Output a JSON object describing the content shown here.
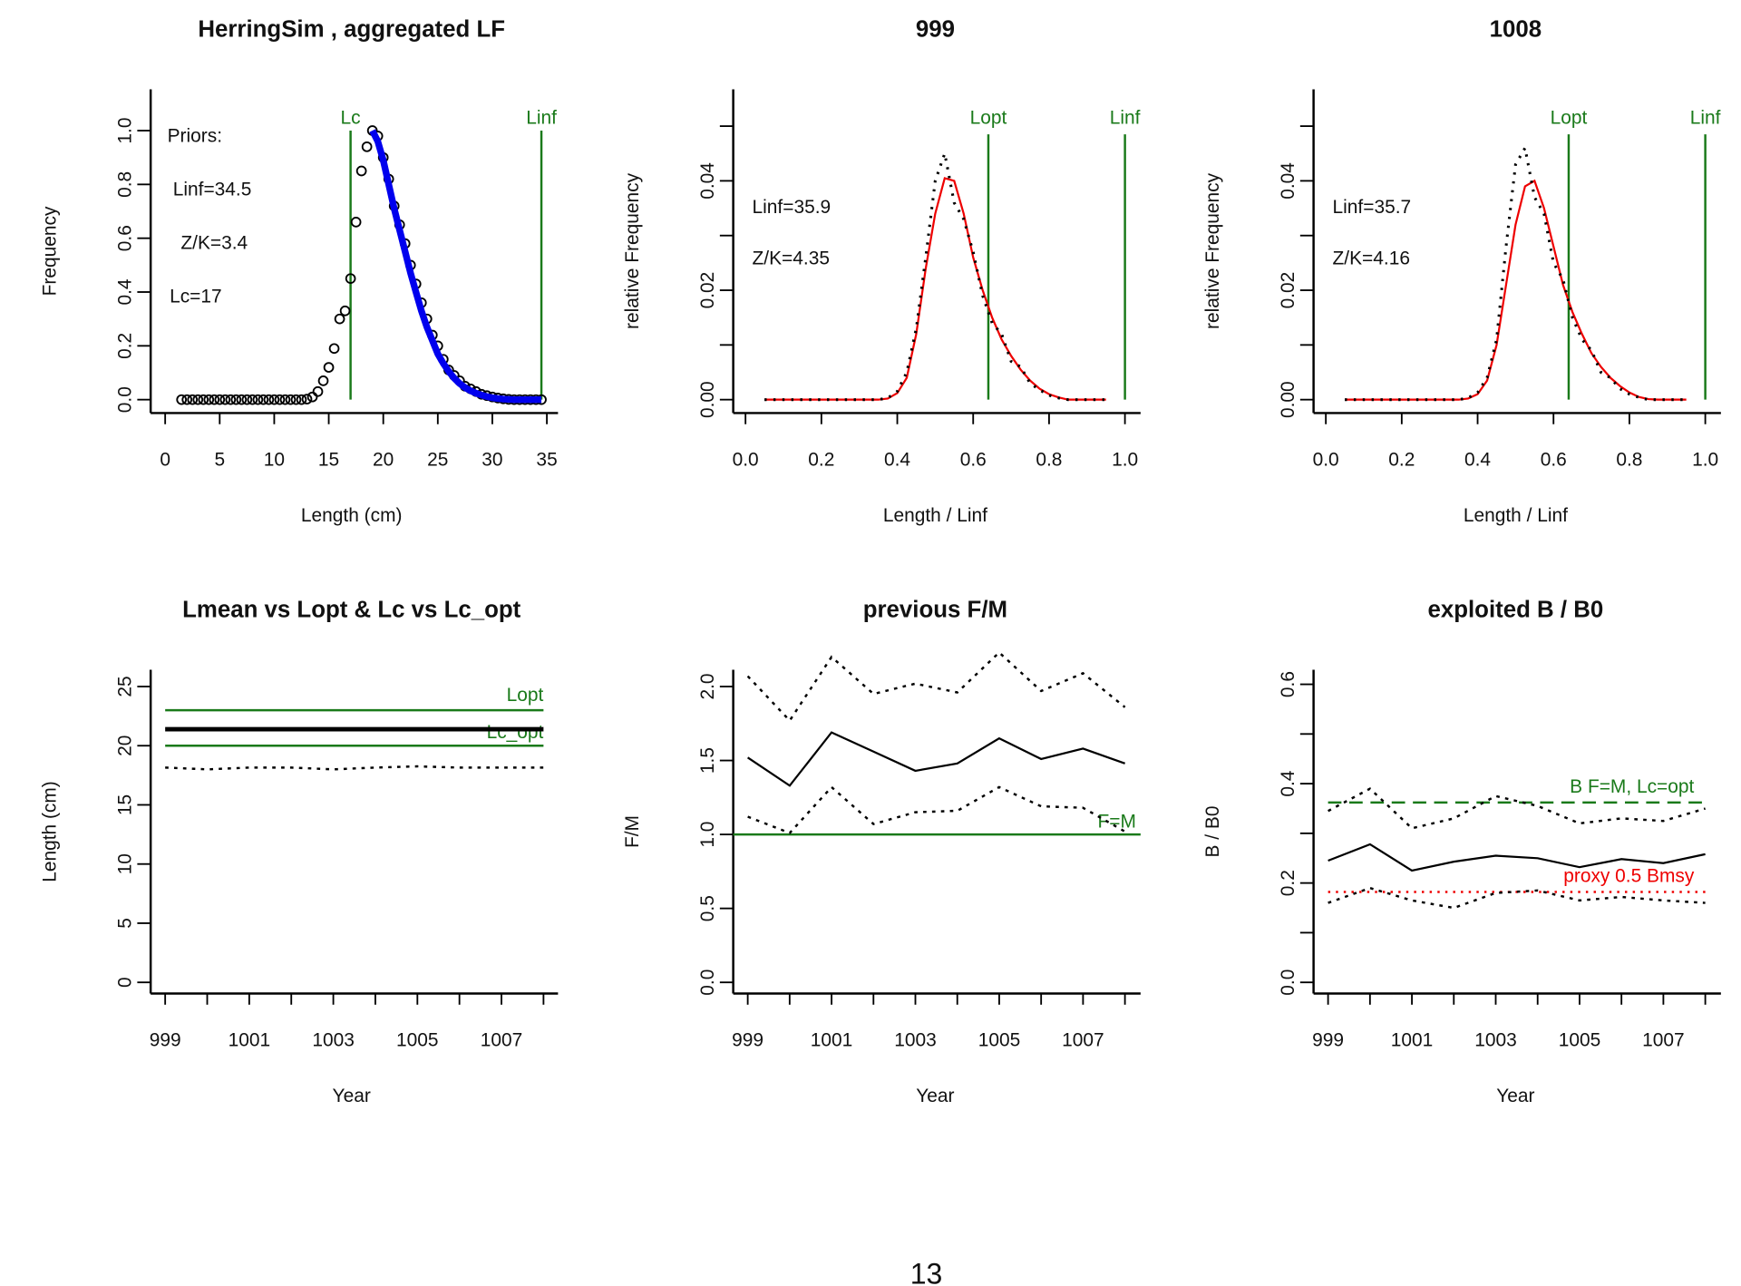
{
  "page_number": "13",
  "colors": {
    "green": "#1a7a1a",
    "blue": "#0000ee",
    "red": "#ee0000",
    "black": "#000000"
  },
  "chart_data": [
    {
      "type": "scatter",
      "title": "HerringSim , aggregated LF",
      "xlabel": "Length (cm)",
      "ylabel": "Frequency",
      "xlim": [
        0,
        35
      ],
      "ylim": [
        0,
        1.1
      ],
      "xticks": [
        0,
        5,
        10,
        15,
        20,
        25,
        30,
        35
      ],
      "yticks": [
        0,
        0.2,
        0.4,
        0.6,
        0.8,
        1.0
      ],
      "ytick_labels": [
        "0.0",
        "0.2",
        "0.4",
        "0.6",
        "0.8",
        "1.0"
      ],
      "annotations": [
        "Priors:",
        "Linf=34.5",
        "Z/K=3.4",
        "Lc=17"
      ],
      "vlines": [
        {
          "label": "Lc",
          "x": 17,
          "color": "green"
        },
        {
          "label": "Linf",
          "x": 34.5,
          "color": "green"
        }
      ],
      "observed": {
        "x": [
          1.5,
          2,
          2.5,
          3,
          3.5,
          4,
          4.5,
          5,
          5.5,
          6,
          6.5,
          7,
          7.5,
          8,
          8.5,
          9,
          9.5,
          10,
          10.5,
          11,
          11.5,
          12,
          12.5,
          13,
          13.5,
          14,
          14.5,
          15,
          15.5,
          16,
          16.5,
          17,
          17.5,
          18,
          18.5,
          19,
          19.5,
          20,
          20.5,
          21,
          21.5,
          22,
          22.5,
          23,
          23.5,
          24,
          24.5,
          25,
          25.5,
          26,
          26.5,
          27,
          27.5,
          28,
          28.5,
          29,
          29.5,
          30,
          30.5,
          31,
          31.5,
          32,
          32.5,
          33,
          33.5,
          34,
          34.5
        ],
        "y": [
          0,
          0,
          0,
          0,
          0,
          0,
          0,
          0,
          0,
          0,
          0,
          0,
          0,
          0,
          0,
          0,
          0,
          0,
          0,
          0,
          0,
          0,
          0,
          0.002,
          0.01,
          0.03,
          0.07,
          0.12,
          0.19,
          0.3,
          0.33,
          0.45,
          0.66,
          0.85,
          0.94,
          1.0,
          0.98,
          0.9,
          0.82,
          0.72,
          0.65,
          0.58,
          0.5,
          0.43,
          0.36,
          0.3,
          0.24,
          0.2,
          0.15,
          0.11,
          0.09,
          0.07,
          0.05,
          0.04,
          0.03,
          0.02,
          0.015,
          0.01,
          0.006,
          0.003,
          0.001,
          0,
          0,
          0,
          0,
          0,
          0
        ]
      },
      "fit": {
        "color": "blue",
        "x": [
          19,
          19.5,
          20,
          20.5,
          21,
          21.5,
          22,
          22.5,
          23,
          23.5,
          24,
          24.5,
          25,
          25.5,
          26,
          26.5,
          27,
          27.5,
          28,
          28.5,
          29,
          29.5,
          30,
          30.5,
          31,
          32,
          33,
          34,
          34.5
        ],
        "y": [
          1.0,
          0.96,
          0.89,
          0.8,
          0.71,
          0.63,
          0.55,
          0.47,
          0.4,
          0.33,
          0.27,
          0.22,
          0.17,
          0.135,
          0.105,
          0.08,
          0.06,
          0.045,
          0.033,
          0.024,
          0.017,
          0.011,
          0.007,
          0.004,
          0.002,
          0,
          0,
          0,
          0
        ]
      }
    },
    {
      "type": "line",
      "title": "999",
      "xlabel": "Length / Linf",
      "ylabel": "relative Frequency",
      "xlim": [
        0,
        1.0
      ],
      "ylim": [
        0,
        0.05
      ],
      "xticks": [
        0,
        0.2,
        0.4,
        0.6,
        0.8,
        1.0
      ],
      "xtick_labels": [
        "0.0",
        "0.2",
        "0.4",
        "0.6",
        "0.8",
        "1.0"
      ],
      "yticks": [
        0,
        0.01,
        0.02,
        0.03,
        0.04,
        0.05
      ],
      "ytick_labels": [
        "0.00",
        "",
        "0.02",
        "",
        "0.04",
        ""
      ],
      "annotations": [
        "Linf=35.9",
        "Z/K=4.35"
      ],
      "vlines": [
        {
          "label": "Lopt",
          "x": 0.64,
          "color": "green"
        },
        {
          "label": "Linf",
          "x": 1.0,
          "color": "green"
        }
      ],
      "x": [
        0.05,
        0.075,
        0.1,
        0.125,
        0.15,
        0.175,
        0.2,
        0.225,
        0.25,
        0.275,
        0.3,
        0.325,
        0.35,
        0.375,
        0.4,
        0.425,
        0.45,
        0.475,
        0.5,
        0.525,
        0.55,
        0.575,
        0.6,
        0.625,
        0.65,
        0.675,
        0.7,
        0.725,
        0.75,
        0.775,
        0.8,
        0.825,
        0.85,
        0.875,
        0.9,
        0.925,
        0.95
      ],
      "fit": [
        0,
        0,
        0,
        0,
        0,
        0,
        0,
        0,
        0,
        0,
        0,
        0,
        0,
        0.0002,
        0.0012,
        0.004,
        0.012,
        0.024,
        0.034,
        0.0405,
        0.04,
        0.034,
        0.026,
        0.02,
        0.015,
        0.011,
        0.008,
        0.0055,
        0.0035,
        0.002,
        0.001,
        0.0004,
        0,
        0,
        0,
        0,
        0
      ],
      "observed": [
        0,
        0,
        0,
        0,
        0,
        0,
        0,
        0,
        0,
        0,
        0,
        0,
        0,
        0.0003,
        0.0015,
        0.005,
        0.013,
        0.026,
        0.04,
        0.045,
        0.036,
        0.033,
        0.027,
        0.019,
        0.014,
        0.012,
        0.007,
        0.006,
        0.003,
        0.0018,
        0.0008,
        0.0003,
        0,
        0,
        0,
        0,
        0
      ]
    },
    {
      "type": "line",
      "title": "1008",
      "xlabel": "Length / Linf",
      "ylabel": "relative Frequency",
      "xlim": [
        0,
        1.0
      ],
      "ylim": [
        0,
        0.05
      ],
      "xticks": [
        0,
        0.2,
        0.4,
        0.6,
        0.8,
        1.0
      ],
      "xtick_labels": [
        "0.0",
        "0.2",
        "0.4",
        "0.6",
        "0.8",
        "1.0"
      ],
      "yticks": [
        0,
        0.01,
        0.02,
        0.03,
        0.04,
        0.05
      ],
      "ytick_labels": [
        "0.00",
        "",
        "0.02",
        "",
        "0.04",
        ""
      ],
      "annotations": [
        "Linf=35.7",
        "Z/K=4.16"
      ],
      "vlines": [
        {
          "label": "Lopt",
          "x": 0.64,
          "color": "green"
        },
        {
          "label": "Linf",
          "x": 1.0,
          "color": "green"
        }
      ],
      "x": [
        0.05,
        0.075,
        0.1,
        0.125,
        0.15,
        0.175,
        0.2,
        0.225,
        0.25,
        0.275,
        0.3,
        0.325,
        0.35,
        0.375,
        0.4,
        0.425,
        0.45,
        0.475,
        0.5,
        0.525,
        0.55,
        0.575,
        0.6,
        0.625,
        0.65,
        0.675,
        0.7,
        0.725,
        0.75,
        0.775,
        0.8,
        0.825,
        0.85,
        0.875,
        0.9,
        0.925,
        0.95
      ],
      "fit": [
        0,
        0,
        0,
        0,
        0,
        0,
        0,
        0,
        0,
        0,
        0,
        0,
        0,
        0.0002,
        0.001,
        0.0035,
        0.01,
        0.021,
        0.032,
        0.039,
        0.04,
        0.035,
        0.028,
        0.021,
        0.016,
        0.012,
        0.0085,
        0.006,
        0.004,
        0.0025,
        0.0013,
        0.0005,
        0.0001,
        0,
        0,
        0,
        0
      ],
      "observed": [
        0,
        0,
        0,
        0,
        0,
        0,
        0,
        0,
        0,
        0,
        0,
        0,
        0,
        0.0003,
        0.0013,
        0.004,
        0.011,
        0.028,
        0.043,
        0.046,
        0.037,
        0.034,
        0.025,
        0.022,
        0.015,
        0.011,
        0.009,
        0.005,
        0.004,
        0.002,
        0.001,
        0.0004,
        0,
        0,
        0,
        0,
        0
      ]
    },
    {
      "type": "line",
      "title": "Lmean vs Lopt & Lc vs Lc_opt",
      "xlabel": "Year",
      "ylabel": "Length (cm)",
      "xlim": [
        999,
        1008
      ],
      "ylim": [
        0,
        25
      ],
      "xticks": [
        999,
        1000,
        1001,
        1002,
        1003,
        1004,
        1005,
        1006,
        1007,
        1008
      ],
      "xtick_labels": [
        "999",
        "",
        "1001",
        "",
        "1003",
        "",
        "1005",
        "",
        "1007",
        ""
      ],
      "yticks": [
        0,
        5,
        10,
        15,
        20,
        25
      ],
      "hlines": [
        {
          "label": "Lopt",
          "y": 23,
          "color": "green"
        },
        {
          "label": "Lc_opt",
          "y": 20,
          "color": "green"
        }
      ],
      "x": [
        999,
        1000,
        1001,
        1002,
        1003,
        1004,
        1005,
        1006,
        1007,
        1008
      ],
      "series": [
        {
          "style": "thick",
          "values": [
            21.4,
            21.4,
            21.4,
            21.4,
            21.4,
            21.4,
            21.4,
            21.4,
            21.4,
            21.4
          ]
        },
        {
          "style": "dotted",
          "values": [
            18.15,
            18.0,
            18.15,
            18.15,
            18.0,
            18.15,
            18.25,
            18.15,
            18.15,
            18.15
          ]
        }
      ]
    },
    {
      "type": "line",
      "title": "previous F/M",
      "xlabel": "Year",
      "ylabel": "F/M",
      "xlim": [
        999,
        1008
      ],
      "ylim": [
        0,
        2.2
      ],
      "xticks": [
        999,
        1000,
        1001,
        1002,
        1003,
        1004,
        1005,
        1006,
        1007,
        1008
      ],
      "xtick_labels": [
        "999",
        "",
        "1001",
        "",
        "1003",
        "",
        "1005",
        "",
        "1007",
        ""
      ],
      "yticks": [
        0,
        0.5,
        1.0,
        1.5,
        2.0
      ],
      "ytick_labels": [
        "0.0",
        "0.5",
        "1.0",
        "1.5",
        "2.0"
      ],
      "hlines": [
        {
          "label": "F=M",
          "y": 1.0,
          "color": "green"
        }
      ],
      "x": [
        999,
        1000,
        1001,
        1002,
        1003,
        1004,
        1005,
        1006,
        1007,
        1008
      ],
      "series": [
        {
          "style": "solid",
          "values": [
            1.52,
            1.33,
            1.69,
            1.56,
            1.43,
            1.48,
            1.65,
            1.51,
            1.58,
            1.48
          ]
        },
        {
          "style": "dotted",
          "values": [
            2.07,
            1.77,
            2.2,
            1.95,
            2.02,
            1.96,
            2.23,
            1.97,
            2.09,
            1.86
          ]
        },
        {
          "style": "dotted",
          "values": [
            1.12,
            1.01,
            1.32,
            1.07,
            1.15,
            1.16,
            1.32,
            1.19,
            1.18,
            1.02
          ]
        }
      ]
    },
    {
      "type": "line",
      "title": "exploited B / B0",
      "xlabel": "Year",
      "ylabel": "B / B0",
      "xlim": [
        999,
        1008
      ],
      "ylim": [
        0,
        0.6
      ],
      "xticks": [
        999,
        1000,
        1001,
        1002,
        1003,
        1004,
        1005,
        1006,
        1007,
        1008
      ],
      "xtick_labels": [
        "999",
        "",
        "1001",
        "",
        "1003",
        "",
        "1005",
        "",
        "1007",
        ""
      ],
      "yticks": [
        0,
        0.1,
        0.2,
        0.3,
        0.4,
        0.5,
        0.6
      ],
      "ytick_labels": [
        "0.0",
        "",
        "0.2",
        "",
        "0.4",
        "",
        "0.6"
      ],
      "hlines": [
        {
          "label": "B F=M, Lc=opt",
          "y": 0.362,
          "color": "green",
          "style": "dashed"
        },
        {
          "label": "proxy 0.5 Bmsy",
          "y": 0.182,
          "color": "red",
          "style": "dotted"
        }
      ],
      "x": [
        999,
        1000,
        1001,
        1002,
        1003,
        1004,
        1005,
        1006,
        1007,
        1008
      ],
      "series": [
        {
          "style": "solid",
          "values": [
            0.245,
            0.278,
            0.225,
            0.243,
            0.255,
            0.25,
            0.232,
            0.248,
            0.24,
            0.258
          ]
        },
        {
          "style": "dotted",
          "values": [
            0.345,
            0.39,
            0.31,
            0.33,
            0.375,
            0.355,
            0.32,
            0.33,
            0.325,
            0.35
          ]
        },
        {
          "style": "dotted",
          "values": [
            0.16,
            0.19,
            0.165,
            0.15,
            0.18,
            0.185,
            0.165,
            0.172,
            0.165,
            0.16
          ]
        }
      ]
    }
  ]
}
